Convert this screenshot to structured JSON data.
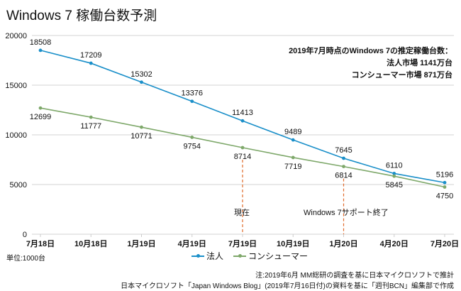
{
  "chart_data": {
    "type": "line",
    "title": "Windows 7 稼働台数予測",
    "xlabel": "",
    "ylabel": "",
    "unit_label": "単位:1000台",
    "categories": [
      "7月18日",
      "10月18日",
      "1月19日",
      "4月19日",
      "7月19日",
      "10月19日",
      "1月20日",
      "4月20日",
      "7月20日"
    ],
    "ylim": [
      0,
      20000
    ],
    "yticks": [
      "0",
      "5000",
      "10000",
      "15000",
      "20000"
    ],
    "ytick_values": [
      0,
      5000,
      10000,
      15000,
      20000
    ],
    "grid": true,
    "legend_position": "bottom",
    "series": [
      {
        "name": "法人",
        "color": "#1a8fc9",
        "values": [
          18508,
          17209,
          15302,
          13376,
          11413,
          9489,
          7645,
          6110,
          5196
        ],
        "labels": [
          "18508",
          "17209",
          "15302",
          "13376",
          "11413",
          "9489",
          "7645",
          "6110",
          "5196"
        ]
      },
      {
        "name": "コンシューマー",
        "color": "#7ea86a",
        "values": [
          12699,
          11777,
          10771,
          9754,
          8714,
          7719,
          6814,
          5845,
          4750
        ],
        "labels": [
          "12699",
          "11777",
          "10771",
          "9754",
          "8714",
          "7719",
          "6814",
          "5845",
          "4750"
        ]
      }
    ],
    "markers": [
      {
        "category_index": 4,
        "label": "現在"
      },
      {
        "category_index": 6,
        "label": "Windows 7サポート終了"
      }
    ],
    "marker_color": "#e06a2a",
    "annotation": [
      "2019年7月時点のWindows 7の推定稼働台数：",
      "法人市場 1141万台",
      "コンシューマー市場 871万台"
    ]
  },
  "notes": [
    "注:2019年6月 MM総研の調査を基に日本マイクロソフトで推計",
    "日本マイクロソフト「Japan Windows Blog」(2019年7月16日付)の資料を基に「週刊BCN」編集部で作成"
  ]
}
